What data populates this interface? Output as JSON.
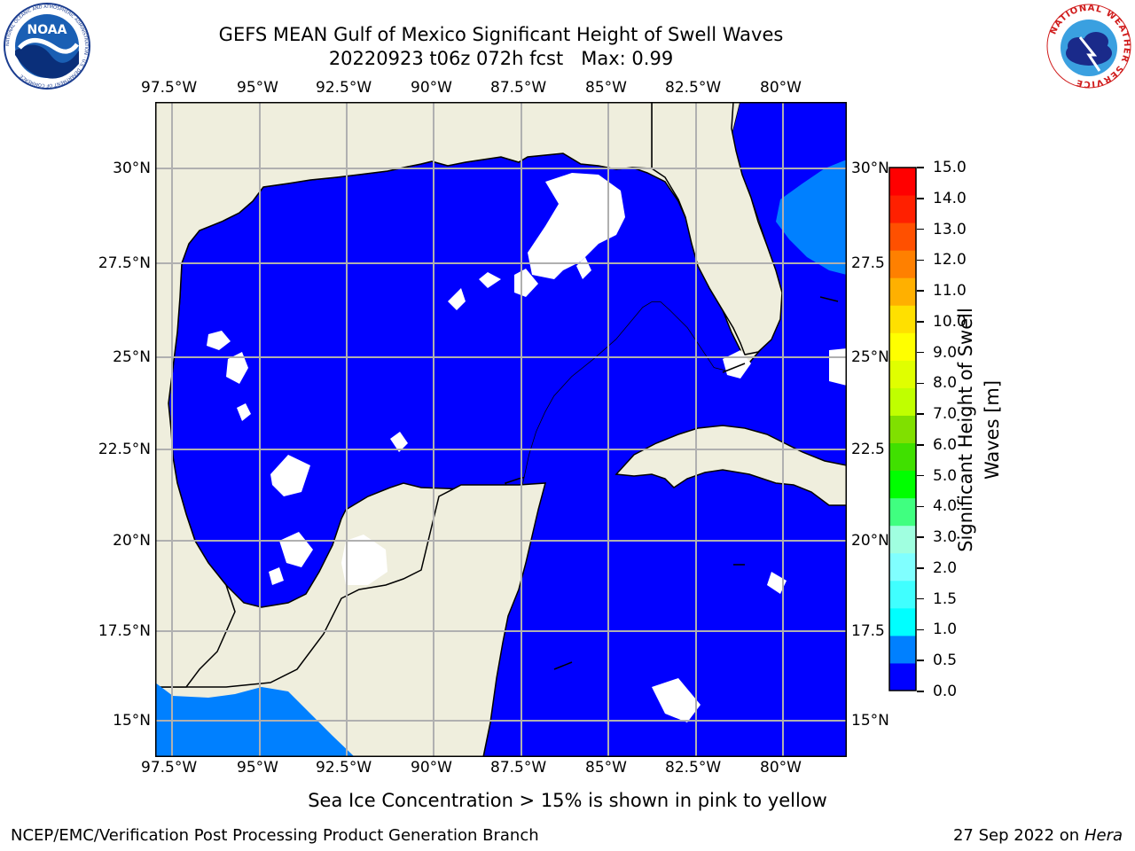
{
  "header": {
    "title_line1": "GEFS MEAN Gulf of Mexico Significant Height of Swell Waves",
    "title_line2": "20220923 t06z 072h fcst",
    "max_label": "Max: 0.99"
  },
  "logos": {
    "noaa_text": "NOAA",
    "noaa_ring_text": "NATIONAL OCEANIC AND ATMOSPHERIC ADMINISTRATION · U.S. DEPARTMENT OF COMMERCE",
    "nws_ring_text": "NATIONAL WEATHER SERVICE"
  },
  "axes": {
    "lon_labels": [
      "97.5°W",
      "95°W",
      "92.5°W",
      "90°W",
      "87.5°W",
      "85°W",
      "82.5°W",
      "80°W"
    ],
    "lat_labels_left": [
      "30°N",
      "27.5°N",
      "25°N",
      "22.5°N",
      "20°N",
      "17.5°N",
      "15°N"
    ],
    "lat_labels_right": [
      "30°N",
      "27.5",
      "25°N",
      "22.5",
      "20°N",
      "17.5",
      "15°N"
    ]
  },
  "colorbar": {
    "label": "Significant Height of Swell Waves [m]",
    "label_line1": "Significant Height of Swell",
    "label_line2": "Waves [m]",
    "ticks": [
      "15.0",
      "14.0",
      "13.0",
      "12.0",
      "11.0",
      "10.0",
      "9.0",
      "8.0",
      "7.0",
      "6.0",
      "5.0",
      "4.0",
      "3.0",
      "2.0",
      "1.5",
      "1.0",
      "0.5",
      "0.0"
    ],
    "colors_bottom_to_top": [
      "#0000ff",
      "#0080ff",
      "#00ffff",
      "#40ffff",
      "#80ffff",
      "#a0ffe0",
      "#40ff80",
      "#00ff00",
      "#40e000",
      "#80e000",
      "#c0ff00",
      "#e0ff00",
      "#ffff00",
      "#ffe000",
      "#ffb000",
      "#ff8000",
      "#ff5000",
      "#ff2000",
      "#ff0000"
    ]
  },
  "colors": {
    "land": "#efeedd",
    "ocean_low": "#0000ff",
    "ocean_mid": "#0080ff",
    "grid": "#b0b0b0"
  },
  "caption": "Sea Ice Concentration > 15% is shown in pink to yellow",
  "footer": {
    "left": "NCEP/EMC/Verification Post Processing Product Generation Branch",
    "right_date": "27 Sep 2022 on",
    "right_host": "Hera"
  }
}
